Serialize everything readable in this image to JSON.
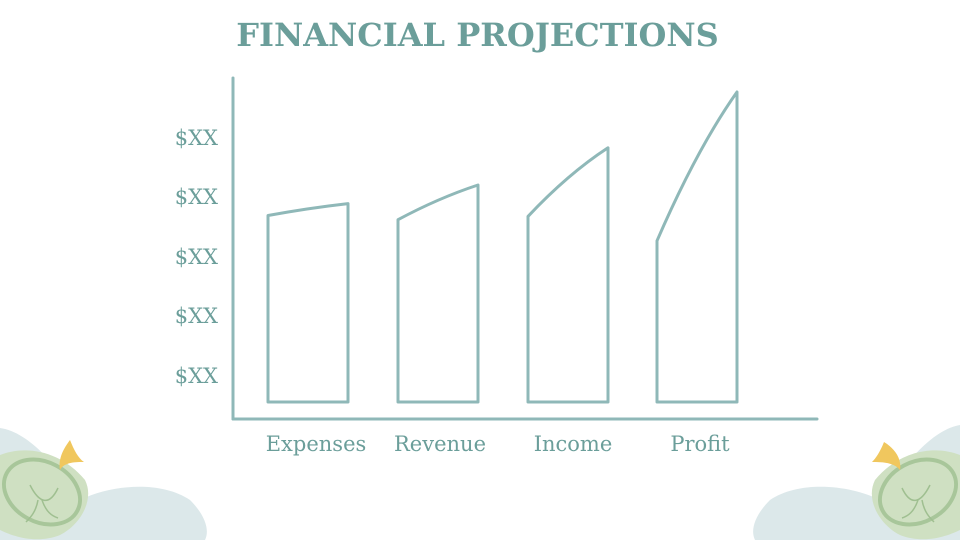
{
  "chart_data": {
    "type": "bar",
    "title": "FINANCIAL PROJECTIONS",
    "categories": [
      "Expenses",
      "Revenue",
      "Income",
      "Profit"
    ],
    "series": [
      {
        "values": [
          3.2,
          3.5,
          4.1,
          5.0
        ]
      }
    ],
    "y_tick_labels": [
      "$XX",
      "$XX",
      "$XX",
      "$XX",
      "$XX"
    ],
    "ylim": [
      0,
      5.5
    ],
    "grid": false,
    "legend": "none",
    "colors": {
      "bar_stroke": "#8fb8b8",
      "axis": "#8fb8b8",
      "text": "#6b9e9a"
    }
  }
}
